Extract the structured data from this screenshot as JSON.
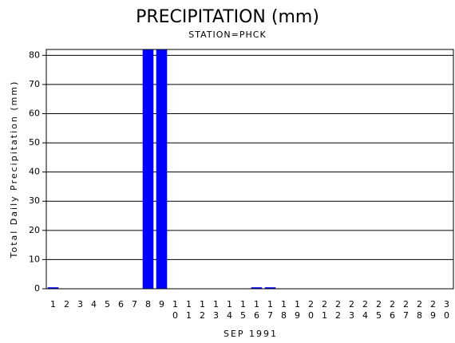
{
  "chart_data": {
    "type": "bar",
    "title": "PRECIPITATION (mm)",
    "subtitle": "STATION=PHCK",
    "x_label": "SEP 1991",
    "y_label": "Total Daily Precipitation (mm)",
    "categories": [
      "1",
      "2",
      "3",
      "4",
      "5",
      "6",
      "7",
      "8",
      "9",
      "10",
      "11",
      "12",
      "13",
      "14",
      "15",
      "16",
      "17",
      "18",
      "19",
      "20",
      "21",
      "22",
      "23",
      "24",
      "25",
      "26",
      "27",
      "28",
      "29",
      "30"
    ],
    "values": [
      0.5,
      0,
      0,
      0,
      0,
      0,
      0,
      82,
      82,
      0,
      0,
      0,
      0,
      0,
      0,
      0.5,
      0.5,
      0,
      0,
      0,
      0,
      0,
      0,
      0,
      0,
      0,
      0,
      0,
      0,
      0
    ],
    "color": "#0000ff",
    "ylim": [
      0,
      82
    ],
    "yticks": [
      0,
      10,
      20,
      30,
      40,
      50,
      60,
      70,
      80
    ],
    "grid": true
  }
}
